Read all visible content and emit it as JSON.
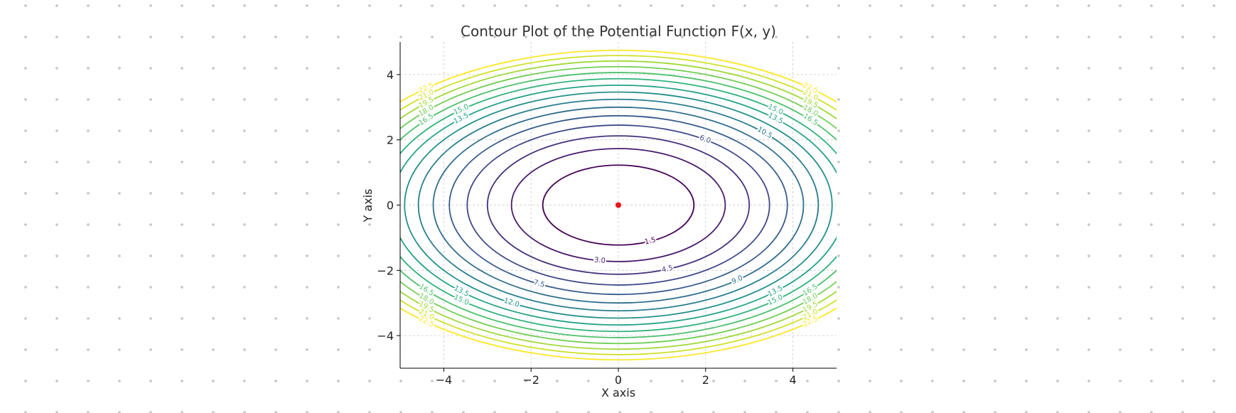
{
  "chart_data": {
    "type": "contour",
    "title": "Contour Plot of the Potential Function F(x, y)",
    "xlabel": "X axis",
    "ylabel": "Y axis",
    "xlim": [
      -5,
      5
    ],
    "ylim": [
      -5,
      5
    ],
    "xticks": [
      "−4",
      "−2",
      "0",
      "2",
      "4"
    ],
    "yticks": [
      "−4",
      "−2",
      "0",
      "2",
      "4"
    ],
    "xtick_values": [
      -4,
      -2,
      0,
      2,
      4
    ],
    "ytick_values": [
      -4,
      -2,
      0,
      2,
      4
    ],
    "grid": true,
    "function": "F(x, y) = x^2 / 2 + y^2",
    "levels": [
      1.5,
      3.0,
      4.5,
      6.0,
      7.5,
      9.0,
      10.5,
      12.0,
      13.5,
      15.0,
      16.5,
      18.0,
      19.5,
      21.0,
      22.5
    ],
    "level_labels": [
      "1.5",
      "3.0",
      "4.5",
      "6.0",
      "7.5",
      "9.0",
      "10.5",
      "12.0",
      "13.5",
      "15.0",
      "16.5",
      "18.0",
      "19.5",
      "21.0",
      "22.5"
    ],
    "colormap": "viridis",
    "marker": {
      "x": 0,
      "y": 0,
      "color": "#e8141c"
    }
  }
}
